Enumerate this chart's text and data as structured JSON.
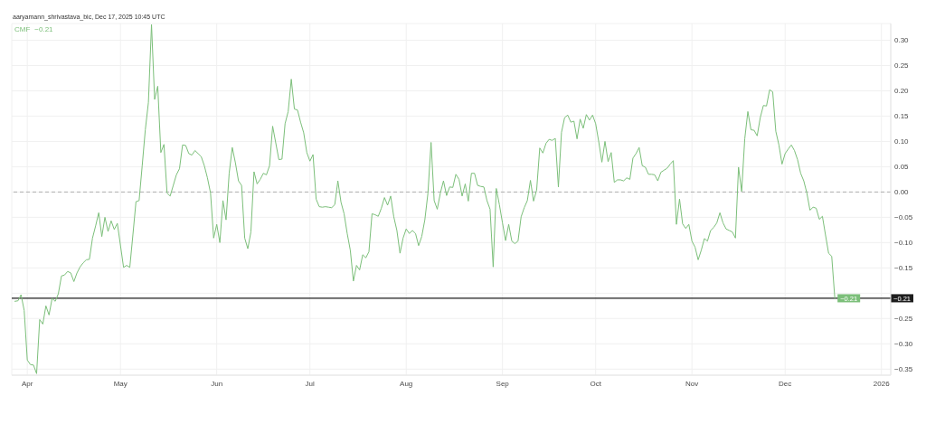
{
  "chart_data": {
    "type": "line",
    "title": "aaryamann_shrivastava_bic, Dec 17, 2025 10:45 UTC",
    "x": [
      "2025-03-28",
      "2025-03-29",
      "2025-03-30",
      "2025-03-31",
      "2025-04-01",
      "2025-04-02",
      "2025-04-03",
      "2025-04-04",
      "2025-04-05",
      "2025-04-06",
      "2025-04-07",
      "2025-04-08",
      "2025-04-09",
      "2025-04-10",
      "2025-04-11",
      "2025-04-12",
      "2025-04-13",
      "2025-04-14",
      "2025-04-15",
      "2025-04-16",
      "2025-04-17",
      "2025-04-18",
      "2025-04-19",
      "2025-04-20",
      "2025-04-21",
      "2025-04-22",
      "2025-04-23",
      "2025-04-24",
      "2025-04-25",
      "2025-04-26",
      "2025-04-27",
      "2025-04-28",
      "2025-04-29",
      "2025-04-30",
      "2025-05-02",
      "2025-05-03",
      "2025-05-04",
      "2025-05-05",
      "2025-05-06",
      "2025-05-07",
      "2025-05-08",
      "2025-05-09",
      "2025-05-10",
      "2025-05-11",
      "2025-05-12",
      "2025-05-13",
      "2025-05-14",
      "2025-05-15",
      "2025-05-16",
      "2025-05-17",
      "2025-05-18",
      "2025-05-19",
      "2025-05-20",
      "2025-05-21",
      "2025-05-22",
      "2025-05-23",
      "2025-05-24",
      "2025-05-25",
      "2025-05-26",
      "2025-05-27",
      "2025-05-28",
      "2025-05-29",
      "2025-05-30",
      "2025-05-31",
      "2025-06-01",
      "2025-06-02",
      "2025-06-03",
      "2025-06-04",
      "2025-06-05",
      "2025-06-06",
      "2025-06-07",
      "2025-06-08",
      "2025-06-09",
      "2025-06-10",
      "2025-06-11",
      "2025-06-12",
      "2025-06-13",
      "2025-06-14",
      "2025-06-15",
      "2025-06-16",
      "2025-06-17",
      "2025-06-18",
      "2025-06-19",
      "2025-06-21",
      "2025-06-22",
      "2025-06-23",
      "2025-06-24",
      "2025-06-25",
      "2025-06-26",
      "2025-06-27",
      "2025-06-28",
      "2025-06-29",
      "2025-06-30",
      "2025-07-01",
      "2025-07-02",
      "2025-07-03",
      "2025-07-04",
      "2025-07-05",
      "2025-07-06",
      "2025-07-07",
      "2025-07-08",
      "2025-07-09",
      "2025-07-10",
      "2025-07-11",
      "2025-07-12",
      "2025-07-13",
      "2025-07-14",
      "2025-07-15",
      "2025-07-16",
      "2025-07-17",
      "2025-07-18",
      "2025-07-19",
      "2025-07-20",
      "2025-07-21",
      "2025-07-22",
      "2025-07-23",
      "2025-07-24",
      "2025-07-25",
      "2025-07-26",
      "2025-07-27",
      "2025-07-28",
      "2025-07-29",
      "2025-07-30",
      "2025-07-31",
      "2025-08-01",
      "2025-08-02",
      "2025-08-03",
      "2025-08-04",
      "2025-08-05",
      "2025-08-06",
      "2025-08-07",
      "2025-08-08",
      "2025-08-09",
      "2025-08-10",
      "2025-08-11",
      "2025-08-12",
      "2025-08-13",
      "2025-08-14",
      "2025-08-15",
      "2025-08-16",
      "2025-08-17",
      "2025-08-18",
      "2025-08-19",
      "2025-08-20",
      "2025-08-21",
      "2025-08-22",
      "2025-08-23",
      "2025-08-24",
      "2025-08-25",
      "2025-08-26",
      "2025-08-27",
      "2025-08-28",
      "2025-08-29",
      "2025-08-30",
      "2025-08-31",
      "2025-09-01",
      "2025-09-02",
      "2025-09-03",
      "2025-09-04",
      "2025-09-05",
      "2025-09-06",
      "2025-09-07",
      "2025-09-08",
      "2025-09-09",
      "2025-09-10",
      "2025-09-11",
      "2025-09-12",
      "2025-09-13",
      "2025-09-14",
      "2025-09-15",
      "2025-09-16",
      "2025-09-17",
      "2025-09-18",
      "2025-09-19",
      "2025-09-20",
      "2025-09-21",
      "2025-09-22",
      "2025-09-23",
      "2025-09-24",
      "2025-09-25",
      "2025-09-26",
      "2025-09-27",
      "2025-09-28",
      "2025-09-29",
      "2025-09-30",
      "2025-10-01",
      "2025-10-02",
      "2025-10-03",
      "2025-10-04",
      "2025-10-05",
      "2025-10-06",
      "2025-10-07",
      "2025-10-08",
      "2025-10-09",
      "2025-10-10",
      "2025-10-11",
      "2025-10-12",
      "2025-10-13",
      "2025-10-14",
      "2025-10-15",
      "2025-10-16",
      "2025-10-17",
      "2025-10-18",
      "2025-10-19",
      "2025-10-20",
      "2025-10-21",
      "2025-10-22",
      "2025-10-23",
      "2025-10-24",
      "2025-10-25",
      "2025-10-26",
      "2025-10-27",
      "2025-10-28",
      "2025-10-29",
      "2025-10-30",
      "2025-10-31",
      "2025-11-01",
      "2025-11-02",
      "2025-11-03",
      "2025-11-04",
      "2025-11-05",
      "2025-11-06",
      "2025-11-07",
      "2025-11-08",
      "2025-11-09",
      "2025-11-10",
      "2025-11-11",
      "2025-11-12",
      "2025-11-13",
      "2025-11-14",
      "2025-11-15",
      "2025-11-16",
      "2025-11-17",
      "2025-11-18",
      "2025-11-19",
      "2025-11-20",
      "2025-11-21",
      "2025-11-22",
      "2025-11-23",
      "2025-11-24",
      "2025-11-25",
      "2025-11-26",
      "2025-11-27",
      "2025-11-28",
      "2025-11-29",
      "2025-11-30",
      "2025-12-01",
      "2025-12-02",
      "2025-12-03",
      "2025-12-04",
      "2025-12-05",
      "2025-12-06",
      "2025-12-07",
      "2025-12-08",
      "2025-12-09",
      "2025-12-10",
      "2025-12-11",
      "2025-12-12",
      "2025-12-13",
      "2025-12-14",
      "2025-12-15",
      "2025-12-16",
      "2025-12-17"
    ],
    "series": [
      {
        "name": "CMF",
        "color": "#7cbf7a",
        "values": [
          -0.216,
          -0.215,
          -0.203,
          -0.234,
          -0.332,
          -0.341,
          -0.342,
          -0.359,
          -0.252,
          -0.261,
          -0.225,
          -0.243,
          -0.21,
          -0.216,
          -0.201,
          -0.166,
          -0.164,
          -0.157,
          -0.16,
          -0.177,
          -0.16,
          -0.148,
          -0.14,
          -0.134,
          -0.133,
          -0.091,
          -0.067,
          -0.041,
          -0.088,
          -0.05,
          -0.078,
          -0.057,
          -0.074,
          -0.062,
          -0.149,
          -0.145,
          -0.149,
          -0.085,
          -0.019,
          -0.017,
          0.052,
          0.123,
          0.177,
          0.331,
          0.183,
          0.209,
          0.078,
          0.094,
          -0.002,
          -0.008,
          0.013,
          0.034,
          0.046,
          0.093,
          0.092,
          0.076,
          0.073,
          0.082,
          0.076,
          0.07,
          0.052,
          0.028,
          -0.002,
          -0.091,
          -0.064,
          -0.1,
          -0.017,
          -0.055,
          0.037,
          0.088,
          0.058,
          0.022,
          0.013,
          -0.091,
          -0.112,
          -0.079,
          0.04,
          0.016,
          0.025,
          0.037,
          0.034,
          0.052,
          0.13,
          0.064,
          0.065,
          0.135,
          0.159,
          0.223,
          0.164,
          0.162,
          0.138,
          0.117,
          0.078,
          0.061,
          0.074,
          -0.014,
          -0.029,
          -0.03,
          -0.029,
          -0.03,
          -0.031,
          -0.025,
          0.022,
          -0.02,
          -0.043,
          -0.082,
          -0.115,
          -0.176,
          -0.145,
          -0.154,
          -0.124,
          -0.13,
          -0.118,
          -0.043,
          -0.045,
          -0.048,
          -0.032,
          -0.011,
          -0.026,
          -0.008,
          -0.049,
          -0.076,
          -0.121,
          -0.091,
          -0.073,
          -0.082,
          -0.076,
          -0.082,
          -0.106,
          -0.088,
          -0.055,
          -0.002,
          0.098,
          -0.017,
          -0.034,
          -0.002,
          0.022,
          -0.007,
          0.01,
          0.009,
          0.035,
          0.025,
          -0.008,
          0.016,
          -0.018,
          0.037,
          0.037,
          0.013,
          0.011,
          0.01,
          -0.017,
          -0.034,
          -0.148,
          0.007,
          -0.025,
          -0.061,
          -0.096,
          -0.064,
          -0.097,
          -0.102,
          -0.097,
          -0.049,
          -0.031,
          -0.017,
          0.023,
          -0.018,
          0.004,
          0.087,
          0.077,
          0.096,
          0.104,
          0.102,
          0.106,
          0.01,
          0.118,
          0.147,
          0.152,
          0.138,
          0.14,
          0.105,
          0.144,
          0.126,
          0.153,
          0.142,
          0.152,
          0.135,
          0.099,
          0.059,
          0.1,
          0.06,
          0.078,
          0.019,
          0.024,
          0.024,
          0.022,
          0.028,
          0.025,
          0.067,
          0.076,
          0.088,
          0.052,
          0.049,
          0.035,
          0.035,
          0.034,
          0.022,
          0.039,
          0.043,
          0.047,
          0.055,
          0.062,
          -0.064,
          -0.014,
          -0.063,
          -0.072,
          -0.064,
          -0.097,
          -0.109,
          -0.134,
          -0.115,
          -0.092,
          -0.097,
          -0.076,
          -0.07,
          -0.061,
          -0.041,
          -0.061,
          -0.073,
          -0.076,
          -0.079,
          -0.091,
          0.049,
          0.001,
          0.105,
          0.159,
          0.123,
          0.122,
          0.111,
          0.147,
          0.171,
          0.17,
          0.202,
          0.198,
          0.12,
          0.093,
          0.055,
          0.076,
          0.085,
          0.093,
          0.082,
          0.064,
          0.037,
          0.022,
          -0.002,
          -0.036,
          -0.03,
          -0.032,
          -0.054,
          -0.048,
          -0.085,
          -0.121,
          -0.127,
          -0.21
        ],
        "value_labels": [
          null,
          null,
          null,
          null,
          null,
          null,
          null,
          null,
          null,
          null,
          null,
          null,
          null,
          null,
          null,
          null,
          null,
          null,
          null,
          null,
          null,
          null,
          null,
          null,
          null,
          null,
          null,
          null,
          null,
          null,
          null,
          null,
          null,
          null,
          null,
          null,
          null,
          null,
          null,
          null,
          null,
          null,
          null,
          null,
          null,
          null,
          null,
          null,
          null,
          null,
          null,
          null,
          null,
          null,
          null,
          null,
          null,
          null,
          null,
          null,
          null,
          null,
          null,
          null,
          null,
          null,
          null,
          null,
          null,
          null,
          null,
          null,
          null,
          null,
          null,
          null,
          null,
          null,
          null,
          null,
          null,
          null,
          null,
          null,
          null,
          null,
          null,
          null,
          null,
          null,
          null,
          null,
          null,
          null,
          null,
          null,
          null,
          null,
          null,
          null,
          null,
          null,
          null,
          null,
          null,
          null,
          null,
          null,
          null,
          null,
          null,
          null,
          null,
          null,
          null,
          null,
          null,
          null,
          null,
          null,
          null,
          null,
          null,
          null,
          null,
          null,
          null,
          null,
          null,
          null,
          null,
          null,
          null,
          null,
          null,
          null,
          null,
          null,
          null,
          null,
          null,
          null,
          null,
          null,
          null,
          null,
          null,
          null,
          null,
          null,
          null,
          null,
          null,
          null,
          null,
          null,
          null,
          null,
          null,
          null,
          null,
          null,
          null,
          null,
          null,
          null,
          null,
          null,
          null,
          null,
          null,
          null,
          null,
          null,
          null,
          null,
          null,
          null,
          null,
          null,
          null,
          null,
          null,
          null,
          null,
          null,
          null,
          null,
          null,
          null,
          null,
          null,
          null,
          null,
          null,
          null,
          null,
          null,
          null,
          null,
          null,
          null,
          null,
          null,
          null,
          null,
          null,
          null,
          null,
          null,
          null,
          null,
          null,
          null,
          null,
          null,
          null,
          null,
          null,
          null,
          null,
          null,
          null,
          null,
          null,
          null,
          null,
          null,
          null,
          null,
          null,
          null,
          null,
          null,
          null,
          null,
          null,
          null,
          null,
          null,
          null,
          null,
          null,
          null,
          null,
          null,
          null,
          null,
          null,
          null,
          null,
          null,
          null,
          null,
          null,
          null,
          null,
          null,
          null,
          null,
          null,
          null,
          "−0.21"
        ]
      }
    ],
    "xlim": [
      "2025-03-27",
      "2026-01-04"
    ],
    "xticks": [
      {
        "value": "2025-04-01",
        "label": "Apr"
      },
      {
        "value": "2025-05-01",
        "label": "May"
      },
      {
        "value": "2025-06-01",
        "label": "Jun"
      },
      {
        "value": "2025-07-01",
        "label": "Jul"
      },
      {
        "value": "2025-08-01",
        "label": "Aug"
      },
      {
        "value": "2025-09-01",
        "label": "Sep"
      },
      {
        "value": "2025-10-01",
        "label": "Oct"
      },
      {
        "value": "2025-11-01",
        "label": "Nov"
      },
      {
        "value": "2025-12-01",
        "label": "Dec"
      },
      {
        "value": "2026-01-01",
        "label": "2026"
      }
    ],
    "ylim": [
      -0.362,
      0.333
    ],
    "yticks": [
      {
        "value": 0.3,
        "label": "0.30"
      },
      {
        "value": 0.25,
        "label": "0.25"
      },
      {
        "value": 0.2,
        "label": "0.20"
      },
      {
        "value": 0.15,
        "label": "0.15"
      },
      {
        "value": 0.1,
        "label": "0.10"
      },
      {
        "value": 0.05,
        "label": "0.05"
      },
      {
        "value": 0,
        "label": "0.00"
      },
      {
        "value": -0.05,
        "label": "−0.05"
      },
      {
        "value": -0.1,
        "label": "−0.10"
      },
      {
        "value": -0.15,
        "label": "−0.15"
      },
      {
        "value": -0.2,
        "label": null
      },
      {
        "value": -0.25,
        "label": "−0.25"
      },
      {
        "value": -0.3,
        "label": "−0.30"
      },
      {
        "value": -0.35,
        "label": "−0.35"
      }
    ],
    "ref_lines": [
      {
        "axis": "y",
        "value": 0,
        "color": "#9e9e9e",
        "line_style": "dashed"
      },
      {
        "axis": "y",
        "value": -0.21,
        "label": "−0.21",
        "color": "#1e1e1e",
        "line_style": "solid"
      }
    ],
    "grid": true,
    "legend": "top left",
    "line_style": "solid"
  }
}
